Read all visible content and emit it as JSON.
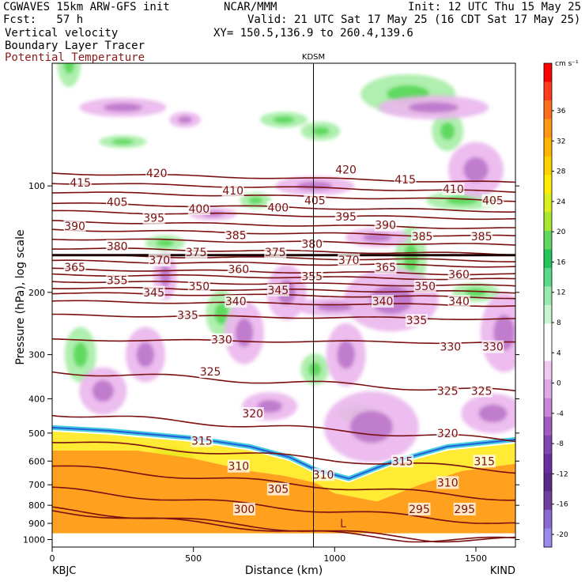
{
  "header": {
    "model": "CGWAVES 15km ARW-GFS init",
    "fcst": "Fcst:   57 h",
    "org": "NCAR/MMM",
    "init": "Init: 12 UTC Thu 15 May 25",
    "valid": "Valid: 21 UTC Sat 17 May 25 (16 CDT Sat 17 May 25)",
    "xy": "XY= 150.5,136.9 to 260.4,139.6",
    "field1": "Vertical velocity",
    "field2": "Boundary Layer Tracer",
    "field3": "Potential Temperature"
  },
  "colors": {
    "theta_contour": "#7a1010",
    "theta_label_title": "#8b1a1a"
  },
  "chart_data": {
    "type": "heatmap",
    "xlabel": "Distance (km)",
    "ylabel": "Pressure (hPa), log scale",
    "x_ticks": [
      0,
      500,
      1000,
      1500
    ],
    "y_ticks": [
      100,
      200,
      300,
      400,
      500,
      600,
      700,
      800,
      900,
      1000
    ],
    "xlim": [
      0,
      1640
    ],
    "ylim": [
      1050,
      45
    ],
    "y_scale": "log",
    "left_station": "KBJC",
    "right_station": "KIND",
    "marker_station": "KDSM",
    "marker_x": 925,
    "low_label": "L",
    "colorbar": {
      "units": "cm s⁻¹",
      "ticks": [
        36,
        32,
        28,
        24,
        20,
        16,
        12,
        8,
        4,
        0,
        -4,
        -8,
        -12,
        -16,
        -20
      ],
      "colors": [
        "#ff0000",
        "#ff3c1e",
        "#ff6e1e",
        "#ff9614",
        "#ffb400",
        "#ffd200",
        "#ffee00",
        "#d8f020",
        "#a8e632",
        "#60d860",
        "#24c45c",
        "#5ad98a",
        "#9be8b0",
        "#c8f5d0",
        "#ffffff",
        "#ffffff",
        "#f0c8f0",
        "#e0a8e6",
        "#c886d6",
        "#a05cc0",
        "#8246b0",
        "#6a2f9e",
        "#5a2a8a",
        "#7040a0",
        "#8a6ad0",
        "#9a8aee"
      ]
    },
    "theta_contours": [
      {
        "theta": 420,
        "p": 92
      },
      {
        "theta": 415,
        "p": 98
      },
      {
        "theta": 410,
        "p": 104
      },
      {
        "theta": 405,
        "p": 112
      },
      {
        "theta": 400,
        "p": 118
      },
      {
        "theta": 395,
        "p": 126
      },
      {
        "theta": 390,
        "p": 133
      },
      {
        "theta": 385,
        "p": 141
      },
      {
        "theta": 380,
        "p": 150
      },
      {
        "theta": 375,
        "p": 157
      },
      {
        "theta": 370,
        "p": 163
      },
      {
        "theta": 365,
        "p": 172
      },
      {
        "theta": 360,
        "p": 178
      },
      {
        "theta": 355,
        "p": 186
      },
      {
        "theta": 350,
        "p": 194
      },
      {
        "theta": 345,
        "p": 201
      },
      {
        "theta": 340,
        "p": 212
      },
      {
        "theta": 335,
        "p": 232
      },
      {
        "theta": 330,
        "p": 272
      },
      {
        "theta": 325,
        "p": 335
      },
      {
        "theta": 320,
        "p": 440
      },
      {
        "theta": 315,
        "p": 525
      },
      {
        "theta": 310,
        "p": 620
      },
      {
        "theta": 305,
        "p": 720
      },
      {
        "theta": 300,
        "p": 820
      },
      {
        "theta": 295,
        "p": 830
      }
    ],
    "theta_labels": [
      {
        "text": "420",
        "x": 370,
        "p": 92
      },
      {
        "text": "420",
        "x": 1040,
        "p": 90
      },
      {
        "text": "415",
        "x": 100,
        "p": 98
      },
      {
        "text": "415",
        "x": 1250,
        "p": 96
      },
      {
        "text": "410",
        "x": 640,
        "p": 103
      },
      {
        "text": "410",
        "x": 1420,
        "p": 102
      },
      {
        "text": "405",
        "x": 230,
        "p": 111
      },
      {
        "text": "405",
        "x": 930,
        "p": 110
      },
      {
        "text": "405",
        "x": 1560,
        "p": 110
      },
      {
        "text": "400",
        "x": 520,
        "p": 116
      },
      {
        "text": "400",
        "x": 800,
        "p": 115
      },
      {
        "text": "395",
        "x": 360,
        "p": 123
      },
      {
        "text": "395",
        "x": 1040,
        "p": 122
      },
      {
        "text": "390",
        "x": 80,
        "p": 130
      },
      {
        "text": "390",
        "x": 1180,
        "p": 129
      },
      {
        "text": "385",
        "x": 650,
        "p": 138
      },
      {
        "text": "385",
        "x": 1310,
        "p": 139
      },
      {
        "text": "385",
        "x": 1520,
        "p": 139
      },
      {
        "text": "380",
        "x": 230,
        "p": 148
      },
      {
        "text": "380",
        "x": 920,
        "p": 146
      },
      {
        "text": "375",
        "x": 510,
        "p": 154
      },
      {
        "text": "375",
        "x": 790,
        "p": 154
      },
      {
        "text": "370",
        "x": 380,
        "p": 162
      },
      {
        "text": "370",
        "x": 1050,
        "p": 162
      },
      {
        "text": "365",
        "x": 80,
        "p": 170
      },
      {
        "text": "365",
        "x": 1180,
        "p": 170
      },
      {
        "text": "360",
        "x": 660,
        "p": 172
      },
      {
        "text": "360",
        "x": 1440,
        "p": 178
      },
      {
        "text": "355",
        "x": 230,
        "p": 185
      },
      {
        "text": "355",
        "x": 920,
        "p": 180
      },
      {
        "text": "350",
        "x": 520,
        "p": 192
      },
      {
        "text": "350",
        "x": 1320,
        "p": 192
      },
      {
        "text": "345",
        "x": 360,
        "p": 200
      },
      {
        "text": "345",
        "x": 800,
        "p": 197
      },
      {
        "text": "340",
        "x": 650,
        "p": 212
      },
      {
        "text": "340",
        "x": 1170,
        "p": 212
      },
      {
        "text": "340",
        "x": 1440,
        "p": 212
      },
      {
        "text": "335",
        "x": 480,
        "p": 232
      },
      {
        "text": "335",
        "x": 1290,
        "p": 240
      },
      {
        "text": "330",
        "x": 600,
        "p": 272
      },
      {
        "text": "330",
        "x": 1410,
        "p": 285
      },
      {
        "text": "330",
        "x": 1560,
        "p": 285
      },
      {
        "text": "325",
        "x": 560,
        "p": 335
      },
      {
        "text": "325",
        "x": 1400,
        "p": 380
      },
      {
        "text": "325",
        "x": 1520,
        "p": 380
      },
      {
        "text": "320",
        "x": 710,
        "p": 440
      },
      {
        "text": "320",
        "x": 1400,
        "p": 500
      },
      {
        "text": "315",
        "x": 530,
        "p": 525
      },
      {
        "text": "315",
        "x": 1240,
        "p": 600
      },
      {
        "text": "315",
        "x": 1530,
        "p": 600
      },
      {
        "text": "310",
        "x": 660,
        "p": 620
      },
      {
        "text": "310",
        "x": 960,
        "p": 655
      },
      {
        "text": "310",
        "x": 1400,
        "p": 690
      },
      {
        "text": "305",
        "x": 800,
        "p": 720
      },
      {
        "text": "300",
        "x": 680,
        "p": 820
      },
      {
        "text": "295",
        "x": 1300,
        "p": 820
      },
      {
        "text": "295",
        "x": 1460,
        "p": 820
      }
    ],
    "upward_regions": [
      {
        "x": 100,
        "p": 300,
        "rx": 20,
        "ry": 35
      },
      {
        "x": 420,
        "p": 600,
        "rx": 30,
        "ry": 18
      },
      {
        "x": 1260,
        "p": 55,
        "rx": 60,
        "ry": 25
      },
      {
        "x": 1270,
        "p": 160,
        "rx": 20,
        "ry": 40
      },
      {
        "x": 1450,
        "p": 110,
        "rx": 45,
        "ry": 12
      },
      {
        "x": 400,
        "p": 145,
        "rx": 25,
        "ry": 10
      },
      {
        "x": 820,
        "p": 65,
        "rx": 30,
        "ry": 10
      },
      {
        "x": 950,
        "p": 70,
        "rx": 25,
        "ry": 12
      },
      {
        "x": 250,
        "p": 75,
        "rx": 30,
        "ry": 8
      },
      {
        "x": 720,
        "p": 110,
        "rx": 20,
        "ry": 10
      },
      {
        "x": 1500,
        "p": 200,
        "rx": 30,
        "ry": 12
      },
      {
        "x": 930,
        "p": 330,
        "rx": 18,
        "ry": 20
      },
      {
        "x": 600,
        "p": 230,
        "rx": 20,
        "ry": 30
      },
      {
        "x": 1080,
        "p": 440,
        "rx": 25,
        "ry": 12
      },
      {
        "x": 1400,
        "p": 70,
        "rx": 20,
        "ry": 25
      },
      {
        "x": 60,
        "p": 45,
        "rx": 15,
        "ry": 30
      }
    ],
    "downward_regions": [
      {
        "x": 250,
        "p": 60,
        "rx": 55,
        "ry": 12
      },
      {
        "x": 1200,
        "p": 210,
        "rx": 60,
        "ry": 40
      },
      {
        "x": 1500,
        "p": 90,
        "rx": 35,
        "ry": 35
      },
      {
        "x": 1600,
        "p": 260,
        "rx": 30,
        "ry": 50
      },
      {
        "x": 770,
        "p": 420,
        "rx": 35,
        "ry": 18
      },
      {
        "x": 1130,
        "p": 480,
        "rx": 60,
        "ry": 45
      },
      {
        "x": 330,
        "p": 300,
        "rx": 25,
        "ry": 35
      },
      {
        "x": 680,
        "p": 260,
        "rx": 25,
        "ry": 40
      },
      {
        "x": 930,
        "p": 100,
        "rx": 50,
        "ry": 12
      },
      {
        "x": 1150,
        "p": 140,
        "rx": 40,
        "ry": 12
      },
      {
        "x": 180,
        "p": 380,
        "rx": 30,
        "ry": 30
      },
      {
        "x": 400,
        "p": 180,
        "rx": 15,
        "ry": 30
      },
      {
        "x": 1040,
        "p": 300,
        "rx": 25,
        "ry": 40
      },
      {
        "x": 830,
        "p": 200,
        "rx": 25,
        "ry": 35
      },
      {
        "x": 1350,
        "p": 60,
        "rx": 70,
        "ry": 15
      },
      {
        "x": 1560,
        "p": 440,
        "rx": 40,
        "ry": 25
      },
      {
        "x": 470,
        "p": 65,
        "rx": 20,
        "ry": 10
      },
      {
        "x": 570,
        "p": 120,
        "rx": 30,
        "ry": 8
      },
      {
        "x": 1000,
        "p": 220,
        "rx": 50,
        "ry": 12
      }
    ]
  }
}
